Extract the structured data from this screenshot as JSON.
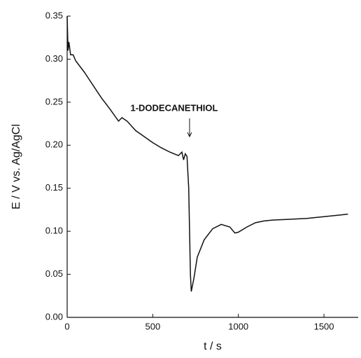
{
  "chart_data": {
    "type": "line",
    "x_label": "t / s",
    "y_label": "E / V vs. Ag/AgCl",
    "x": [
      0,
      5,
      10,
      20,
      35,
      50,
      100,
      150,
      200,
      250,
      300,
      320,
      350,
      400,
      450,
      500,
      550,
      600,
      650,
      670,
      680,
      690,
      700,
      710,
      720,
      725,
      740,
      760,
      800,
      850,
      900,
      950,
      980,
      1000,
      1050,
      1100,
      1150,
      1200,
      1300,
      1400,
      1500,
      1600,
      1640
    ],
    "series": [
      {
        "name": "E",
        "color": "#111111",
        "values": [
          0.35,
          0.31,
          0.32,
          0.305,
          0.305,
          0.298,
          0.285,
          0.27,
          0.255,
          0.242,
          0.228,
          0.232,
          0.228,
          0.217,
          0.21,
          0.203,
          0.197,
          0.192,
          0.188,
          0.192,
          0.183,
          0.19,
          0.187,
          0.15,
          0.05,
          0.03,
          0.045,
          0.07,
          0.09,
          0.103,
          0.108,
          0.105,
          0.098,
          0.099,
          0.105,
          0.11,
          0.112,
          0.113,
          0.114,
          0.115,
          0.117,
          0.119,
          0.12
        ]
      }
    ],
    "xlim": [
      0,
      1700
    ],
    "xticks": [
      0,
      500,
      1000,
      1500
    ],
    "ylim": [
      0,
      0.35
    ],
    "yticks": [
      {
        "value": 0,
        "label": "0.00"
      },
      {
        "value": 0.05,
        "label": "0.05"
      },
      {
        "value": 0.1,
        "label": "0.10"
      },
      {
        "value": 0.15,
        "label": "0.15"
      },
      {
        "value": 0.2,
        "label": "0.20"
      },
      {
        "value": 0.25,
        "label": "0.25"
      },
      {
        "value": 0.3,
        "label": "0.30"
      },
      {
        "value": 0.35,
        "label": "0.35"
      }
    ],
    "annotation": {
      "text": "1-DODECANETHIOL",
      "x": 715,
      "y": 0.21
    },
    "grid": false
  }
}
